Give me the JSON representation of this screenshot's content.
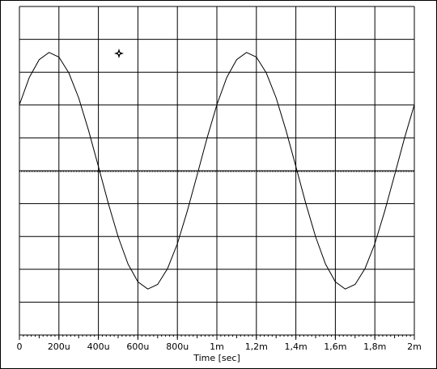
{
  "chart_data": {
    "type": "line",
    "xlabel": "Time [sec]",
    "x": [
      0,
      5e-05,
      0.0001,
      0.00015,
      0.0002,
      0.00025,
      0.0003,
      0.00035,
      0.0004,
      0.00045,
      0.0005,
      0.00055,
      0.0006,
      0.00065,
      0.0007,
      0.00075,
      0.0008,
      0.00085,
      0.0009,
      0.00095,
      0.001,
      0.00105,
      0.0011,
      0.00115,
      0.0012,
      0.00125,
      0.0013,
      0.00135,
      0.0014,
      0.00145,
      0.0015,
      0.00155,
      0.0016,
      0.00165,
      0.0017,
      0.00175,
      0.0018,
      0.00185,
      0.0019,
      0.00195,
      0.002
    ],
    "series": [
      {
        "color": "#000000",
        "values": [
          2.01,
          2.84,
          3.38,
          3.6,
          3.46,
          2.98,
          2.22,
          1.23,
          0.13,
          -0.99,
          -2.01,
          -2.84,
          -3.38,
          -3.6,
          -3.46,
          -2.98,
          -2.22,
          -1.23,
          -0.13,
          0.99,
          2.01,
          2.84,
          3.38,
          3.6,
          3.46,
          2.98,
          2.22,
          1.23,
          0.13,
          -0.99,
          -2.01,
          -2.84,
          -3.38,
          -3.6,
          -3.46,
          -2.98,
          -2.22,
          -1.23,
          -0.13,
          0.99,
          2.01
        ]
      }
    ],
    "xlim": [
      0,
      0.002
    ],
    "xticks": [
      0,
      {
        "value": 0.0002,
        "label": "200u"
      },
      {
        "value": 0.0004,
        "label": "400u"
      },
      {
        "value": 0.0006,
        "label": "600u"
      },
      {
        "value": 0.0008,
        "label": "800u"
      },
      {
        "value": 0.001,
        "label": "1m"
      },
      {
        "value": 0.0012,
        "label": "1,2m"
      },
      {
        "value": 0.0014,
        "label": "1,4m"
      },
      {
        "value": 0.0016,
        "label": "1,6m"
      },
      {
        "value": 0.0018,
        "label": "1,8m"
      },
      {
        "value": 0.002,
        "label": "2m"
      }
    ],
    "ylim": [
      -5,
      5
    ],
    "yticks": [
      -5,
      -4,
      -3,
      -2,
      -1,
      0,
      1,
      2,
      3,
      4,
      5
    ],
    "grid": true
  }
}
